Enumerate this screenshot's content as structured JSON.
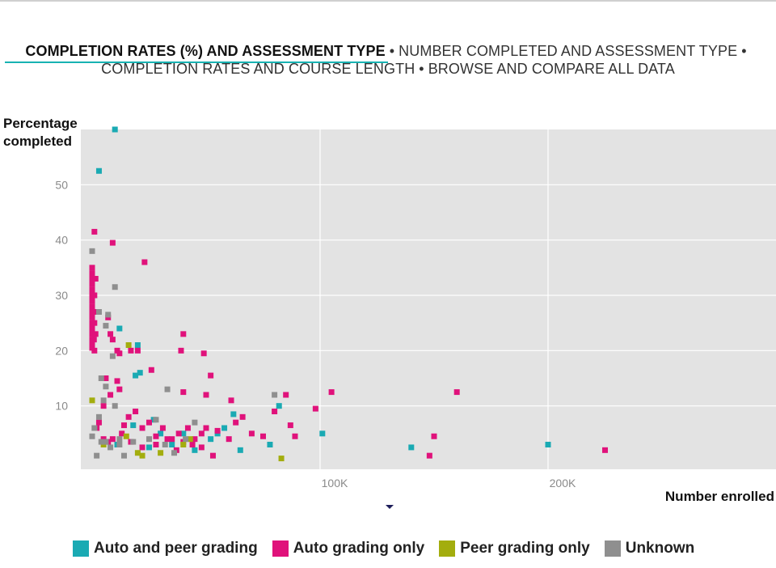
{
  "nav": {
    "tabs": [
      {
        "label": "COMPLETION RATES (%) AND ASSESSMENT TYPE",
        "active": true
      },
      {
        "label": "NUMBER COMPLETED AND ASSESSMENT TYPE",
        "active": false
      },
      {
        "label": "COMPLETION RATES AND COURSE LENGTH",
        "active": false
      },
      {
        "label": "BROWSE AND COMPARE ALL DATA",
        "active": false
      }
    ],
    "separator": "•"
  },
  "chart_data": {
    "type": "scatter",
    "ylabel_line1": "Percentage",
    "ylabel_line2": "completed",
    "xlabel": "Number enrolled",
    "x_ticks": [
      {
        "value": 100000,
        "label": "100K"
      },
      {
        "value": 200000,
        "label": "200K"
      }
    ],
    "y_ticks": [
      10,
      20,
      30,
      40,
      50
    ],
    "xlim": [
      0,
      300000
    ],
    "ylim": [
      0,
      60
    ],
    "grid": true,
    "legend_placement": "bottom",
    "series": [
      {
        "name": "Auto and peer grading",
        "color": "#1aaab3",
        "points": [
          [
            10000,
            60
          ],
          [
            3000,
            52.5
          ],
          [
            12000,
            24
          ],
          [
            20000,
            21
          ],
          [
            21000,
            16
          ],
          [
            19000,
            15.5
          ],
          [
            50000,
            12
          ],
          [
            82000,
            10
          ],
          [
            62000,
            8.5
          ],
          [
            58000,
            6
          ],
          [
            55000,
            5
          ],
          [
            40000,
            5
          ],
          [
            30000,
            5
          ],
          [
            27000,
            7.5
          ],
          [
            35000,
            3
          ],
          [
            45000,
            2
          ],
          [
            18000,
            6.5
          ],
          [
            11000,
            3
          ],
          [
            101000,
            5
          ],
          [
            140000,
            2.5
          ],
          [
            200000,
            3
          ],
          [
            78000,
            3
          ],
          [
            65000,
            2
          ],
          [
            25000,
            2.5
          ],
          [
            52000,
            4
          ]
        ]
      },
      {
        "name": "Auto grading only",
        "color": "#e0127b",
        "points": [
          [
            0,
            35
          ],
          [
            0,
            34
          ],
          [
            0,
            33
          ],
          [
            0,
            32
          ],
          [
            0,
            31
          ],
          [
            0,
            30
          ],
          [
            0,
            29
          ],
          [
            0,
            28
          ],
          [
            0,
            27
          ],
          [
            0,
            26
          ],
          [
            0,
            25
          ],
          [
            0,
            24
          ],
          [
            0,
            23
          ],
          [
            0,
            22
          ],
          [
            0,
            21
          ],
          [
            0,
            20.5
          ],
          [
            1000,
            41.5
          ],
          [
            1500,
            33
          ],
          [
            1000,
            30
          ],
          [
            1200,
            27
          ],
          [
            1000,
            25
          ],
          [
            1500,
            23
          ],
          [
            800,
            22
          ],
          [
            1000,
            20
          ],
          [
            9000,
            39.5
          ],
          [
            23000,
            36
          ],
          [
            7000,
            26
          ],
          [
            8000,
            23
          ],
          [
            9000,
            22
          ],
          [
            11000,
            20
          ],
          [
            12000,
            19.5
          ],
          [
            20000,
            20
          ],
          [
            17000,
            20
          ],
          [
            26000,
            16.5
          ],
          [
            40000,
            23
          ],
          [
            39000,
            20
          ],
          [
            49000,
            19.5
          ],
          [
            52000,
            15.5
          ],
          [
            40000,
            12.5
          ],
          [
            50000,
            12
          ],
          [
            61000,
            11
          ],
          [
            85000,
            12
          ],
          [
            105000,
            12.5
          ],
          [
            160000,
            12.5
          ],
          [
            98000,
            9.5
          ],
          [
            80000,
            9
          ],
          [
            87000,
            6.5
          ],
          [
            89000,
            4.5
          ],
          [
            75000,
            4.5
          ],
          [
            70000,
            5
          ],
          [
            66000,
            8
          ],
          [
            63000,
            7
          ],
          [
            60000,
            4
          ],
          [
            55000,
            5.5
          ],
          [
            50000,
            6
          ],
          [
            48000,
            5
          ],
          [
            45000,
            4
          ],
          [
            42000,
            6
          ],
          [
            40000,
            3.5
          ],
          [
            38000,
            5
          ],
          [
            35000,
            4
          ],
          [
            31000,
            6
          ],
          [
            28000,
            4.5
          ],
          [
            25000,
            7
          ],
          [
            22000,
            6
          ],
          [
            19000,
            9
          ],
          [
            16000,
            8
          ],
          [
            14000,
            6.5
          ],
          [
            12000,
            13
          ],
          [
            11000,
            14.5
          ],
          [
            8000,
            12
          ],
          [
            6000,
            15
          ],
          [
            5000,
            10
          ],
          [
            3000,
            7
          ],
          [
            2000,
            6
          ],
          [
            5000,
            4
          ],
          [
            7000,
            3.5
          ],
          [
            9000,
            4
          ],
          [
            13000,
            5
          ],
          [
            17000,
            3.5
          ],
          [
            22000,
            2.5
          ],
          [
            28000,
            3
          ],
          [
            33000,
            4
          ],
          [
            37000,
            2
          ],
          [
            44000,
            3
          ],
          [
            48000,
            2.5
          ],
          [
            53000,
            1
          ],
          [
            150000,
            4.5
          ],
          [
            148000,
            1
          ],
          [
            225000,
            2
          ]
        ]
      },
      {
        "name": "Peer grading only",
        "color": "#a3ad0e",
        "points": [
          [
            0,
            11
          ],
          [
            16000,
            21
          ],
          [
            20000,
            1.5
          ],
          [
            22000,
            1
          ],
          [
            30000,
            1.5
          ],
          [
            40000,
            3
          ],
          [
            43000,
            4
          ],
          [
            83000,
            0.5
          ],
          [
            5000,
            3
          ],
          [
            15000,
            4.5
          ]
        ]
      },
      {
        "name": "Unknown",
        "color": "#8f8f8f",
        "points": [
          [
            0,
            38
          ],
          [
            3000,
            27
          ],
          [
            10000,
            31.5
          ],
          [
            7000,
            26.5
          ],
          [
            6000,
            24.5
          ],
          [
            9000,
            19
          ],
          [
            4000,
            15
          ],
          [
            6000,
            13.5
          ],
          [
            5000,
            11
          ],
          [
            3000,
            8
          ],
          [
            1000,
            6
          ],
          [
            0,
            4.5
          ],
          [
            2000,
            1
          ],
          [
            8000,
            2.5
          ],
          [
            12000,
            3
          ],
          [
            14000,
            1
          ],
          [
            18000,
            3.5
          ],
          [
            25000,
            4
          ],
          [
            32000,
            3
          ],
          [
            36000,
            1.5
          ],
          [
            41000,
            4
          ],
          [
            33000,
            13
          ],
          [
            80000,
            12
          ],
          [
            45000,
            7
          ],
          [
            28000,
            7.5
          ],
          [
            10000,
            10
          ],
          [
            12000,
            4
          ],
          [
            6000,
            3.5
          ],
          [
            4000,
            3.5
          ]
        ]
      }
    ]
  }
}
